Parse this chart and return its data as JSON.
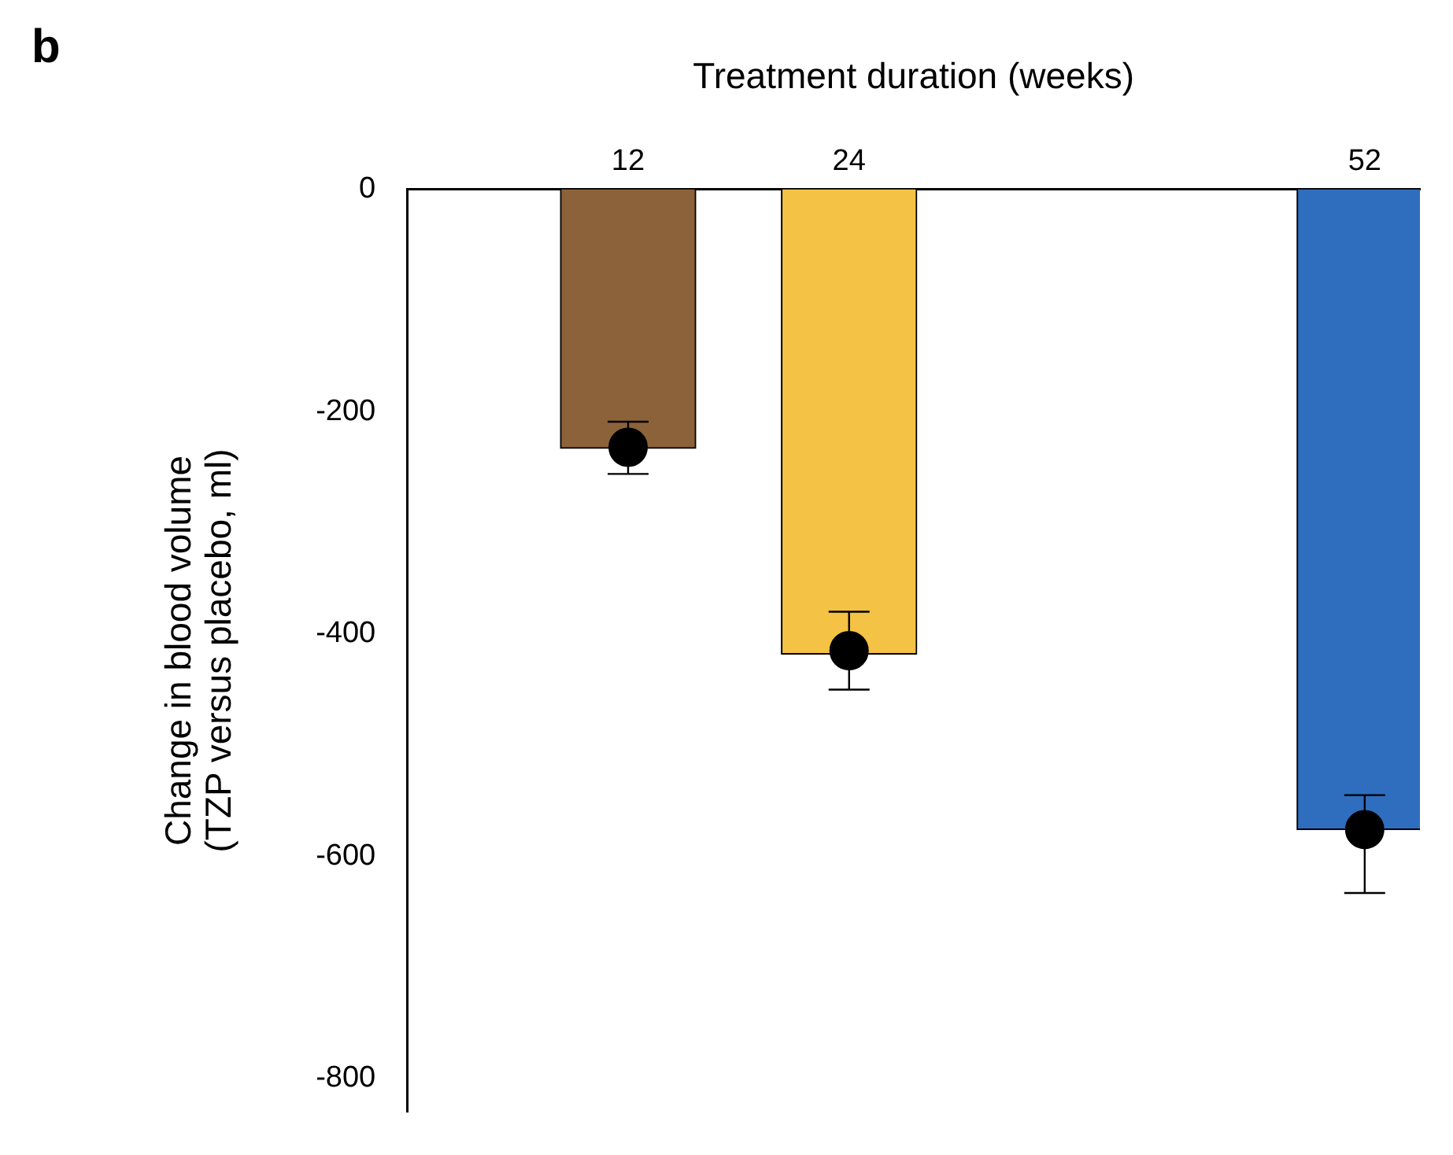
{
  "chart_data": {
    "type": "bar",
    "xlabel": "Treatment duration (weeks)",
    "ylabel": "Change in blood volume\n(TZP versus placebo, ml)",
    "annotations": [
      "b"
    ],
    "x": [
      12,
      24,
      52
    ],
    "xlim": [
      0,
      55
    ],
    "xticks": [
      12,
      24,
      52
    ],
    "ylim": [
      -830,
      0
    ],
    "yticks": [
      0,
      -200,
      -400,
      -600,
      -800
    ],
    "grid": false,
    "legend": false,
    "series": [
      {
        "colors": [
          "#8b6239",
          "#f4c244",
          "#2f6dbe"
        ],
        "values": [
          -233,
          -418,
          -576
        ]
      },
      {
        "type": "scatter",
        "color": "#000000",
        "marker": "circle",
        "values": [
          -232,
          -415,
          -576
        ],
        "errors": [
          [
            -256,
            -209
          ],
          [
            -450,
            -380
          ],
          [
            -633,
            -545
          ]
        ]
      }
    ]
  }
}
